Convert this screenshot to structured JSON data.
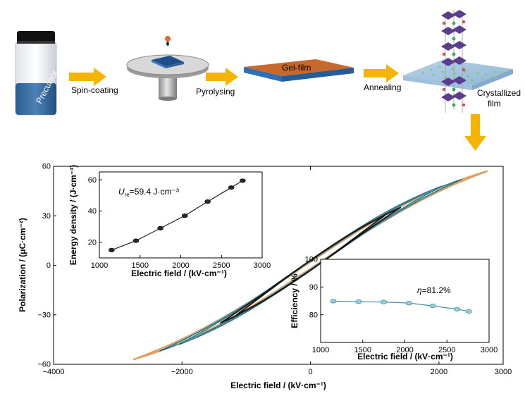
{
  "process": {
    "vial_label": "Precursor",
    "step1": "Spin-coating",
    "step2": "Pyrolysing",
    "film_label": "Gel-film",
    "step3": "Annealing",
    "final_line1": "Crystallized",
    "final_line2": "film"
  },
  "colors": {
    "arrow": "#f5b400",
    "gel_top": "#c8682a",
    "gel_side": "#2f6fb5",
    "loop_outer": "#e0a060",
    "loop_mid": "#5bb8c8",
    "loop_inner": "#1a1a1a",
    "eta_line": "#4a8aa0",
    "eta_marker": "#8fd0dc"
  },
  "chart_data": [
    {
      "type": "line",
      "xlabel": "Electric field / (kV·cm⁻¹)",
      "ylabel": "Polarization / (μC·cm⁻²)",
      "xlim": [
        -4000,
        3000
      ],
      "ylim": [
        -60,
        60
      ],
      "xticks": [
        "−4000",
        "−2000",
        "0",
        "2000",
        "3000"
      ],
      "yticks": [
        "−60",
        "−30",
        "0",
        "30",
        "60"
      ],
      "loops": [
        {
          "emax": 2750,
          "pmax": 57,
          "ps": 80,
          "r": 2.0
        },
        {
          "emax": 2350,
          "pmax": 52,
          "ps": 80,
          "r": 2.5
        },
        {
          "emax": 2050,
          "pmax": 48,
          "ps": 80,
          "r": 3.0
        },
        {
          "emax": 1400,
          "pmax": 35,
          "ps": 80,
          "r": 3.0
        },
        {
          "emax": 1150,
          "pmax": 30,
          "ps": 80,
          "r": 3.0
        }
      ]
    },
    {
      "type": "line",
      "xlabel": "Electric field / (kV·cm⁻¹)",
      "ylabel": "Energy density / (J·cm⁻³)",
      "annotation_prefix": "U",
      "annotation_sub": "re",
      "annotation_value": "=59.4 J·cm⁻³",
      "x": [
        1150,
        1450,
        1750,
        2050,
        2330,
        2620,
        2760
      ],
      "y": [
        15,
        21,
        29,
        37,
        46,
        55,
        59.4
      ],
      "xlim": [
        1000,
        3000
      ],
      "ylim": [
        10,
        65
      ],
      "xticks": [
        "1000",
        "1500",
        "2000",
        "2500",
        "3000"
      ],
      "yticks": [
        "20",
        "40",
        "60"
      ]
    },
    {
      "type": "line",
      "xlabel": "Electric field / (kV·cm⁻¹)",
      "ylabel": "Efficiency / %",
      "annotation_prefix": "η",
      "annotation_value": "=81.2%",
      "x": [
        1150,
        1450,
        1750,
        2050,
        2330,
        2620,
        2760
      ],
      "y": [
        84.9,
        84.7,
        84.6,
        84.2,
        83.2,
        82.0,
        81.2
      ],
      "xlim": [
        1000,
        3000
      ],
      "ylim": [
        70,
        100
      ],
      "xticks": [
        "1000",
        "1500",
        "2000",
        "2500",
        "3000"
      ],
      "yticks": [
        "80",
        "90",
        "100"
      ]
    }
  ]
}
